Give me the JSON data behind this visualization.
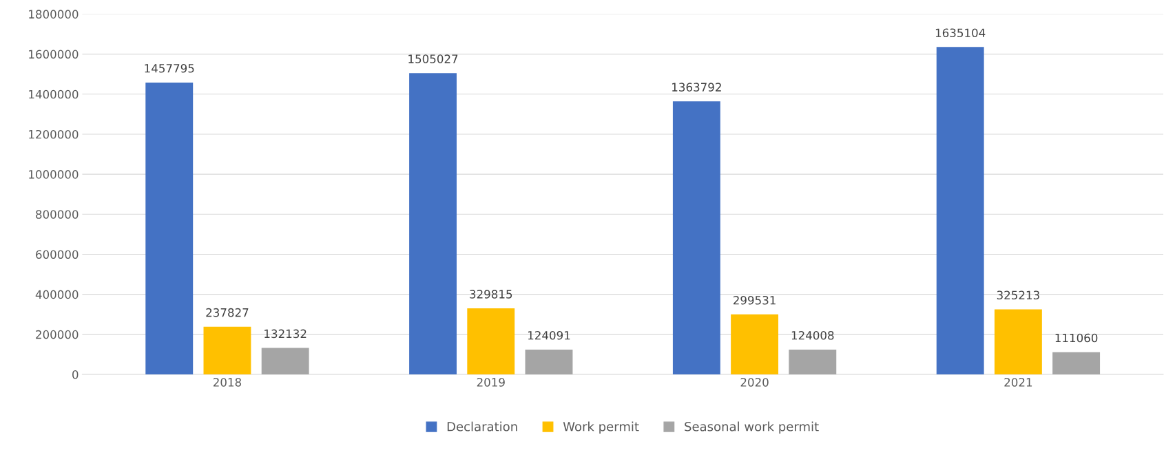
{
  "chart_data": {
    "type": "bar",
    "categories": [
      "2018",
      "2019",
      "2020",
      "2021"
    ],
    "series": [
      {
        "name": "Declaration",
        "color": "#4472c4",
        "values": [
          1457795,
          1505027,
          1363792,
          1635104
        ]
      },
      {
        "name": "Work permit",
        "color": "#ffc000",
        "values": [
          237827,
          329815,
          299531,
          325213
        ]
      },
      {
        "name": "Seasonal work permit",
        "color": "#a5a5a5",
        "values": [
          132132,
          124091,
          124008,
          111060
        ]
      }
    ],
    "ylim": [
      0,
      1800000
    ],
    "yticks": [
      0,
      200000,
      400000,
      600000,
      800000,
      1000000,
      1200000,
      1400000,
      1600000,
      1800000
    ],
    "grid": "y",
    "legend": "bottom",
    "data_labels": true
  }
}
